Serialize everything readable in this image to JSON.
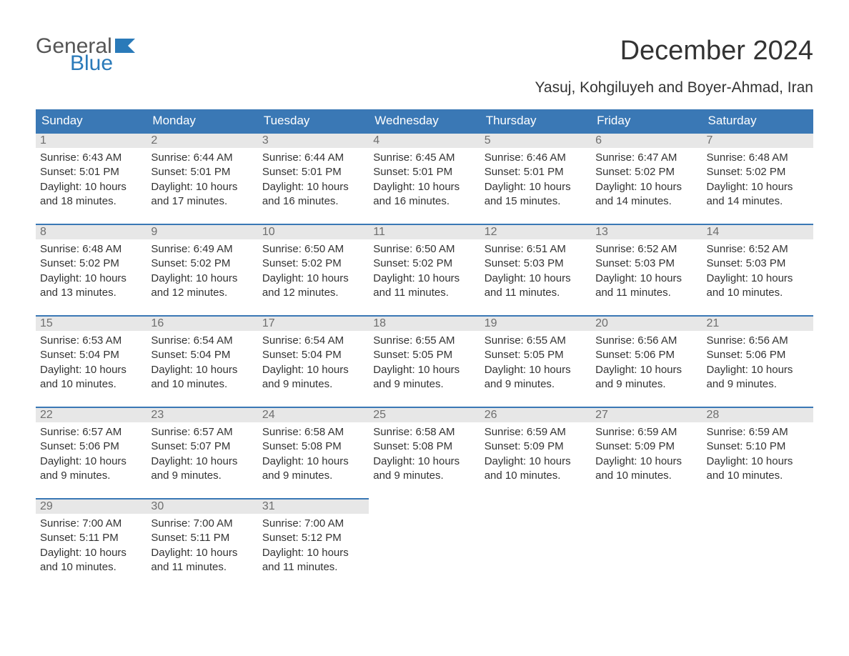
{
  "logo": {
    "line1": "General",
    "line2": "Blue",
    "flag_color": "#2a7ab9"
  },
  "title": "December 2024",
  "location": "Yasuj, Kohgiluyeh and Boyer-Ahmad, Iran",
  "day_headers": [
    "Sunday",
    "Monday",
    "Tuesday",
    "Wednesday",
    "Thursday",
    "Friday",
    "Saturday"
  ],
  "header_bg": "#3a78b5",
  "header_fg": "#ffffff",
  "daynum_bg": "#e7e7e7",
  "daynum_border": "#3a78b5",
  "daynum_fg": "#6e6e6e",
  "text_color": "#333333",
  "background_color": "#ffffff",
  "font_family": "Arial, Helvetica, sans-serif",
  "title_fontsize": 38,
  "location_fontsize": 21,
  "header_fontsize": 17,
  "daynum_fontsize": 16,
  "body_fontsize": 15,
  "weeks": [
    [
      {
        "n": "1",
        "sunrise": "Sunrise: 6:43 AM",
        "sunset": "Sunset: 5:01 PM",
        "day1": "Daylight: 10 hours",
        "day2": "and 18 minutes."
      },
      {
        "n": "2",
        "sunrise": "Sunrise: 6:44 AM",
        "sunset": "Sunset: 5:01 PM",
        "day1": "Daylight: 10 hours",
        "day2": "and 17 minutes."
      },
      {
        "n": "3",
        "sunrise": "Sunrise: 6:44 AM",
        "sunset": "Sunset: 5:01 PM",
        "day1": "Daylight: 10 hours",
        "day2": "and 16 minutes."
      },
      {
        "n": "4",
        "sunrise": "Sunrise: 6:45 AM",
        "sunset": "Sunset: 5:01 PM",
        "day1": "Daylight: 10 hours",
        "day2": "and 16 minutes."
      },
      {
        "n": "5",
        "sunrise": "Sunrise: 6:46 AM",
        "sunset": "Sunset: 5:01 PM",
        "day1": "Daylight: 10 hours",
        "day2": "and 15 minutes."
      },
      {
        "n": "6",
        "sunrise": "Sunrise: 6:47 AM",
        "sunset": "Sunset: 5:02 PM",
        "day1": "Daylight: 10 hours",
        "day2": "and 14 minutes."
      },
      {
        "n": "7",
        "sunrise": "Sunrise: 6:48 AM",
        "sunset": "Sunset: 5:02 PM",
        "day1": "Daylight: 10 hours",
        "day2": "and 14 minutes."
      }
    ],
    [
      {
        "n": "8",
        "sunrise": "Sunrise: 6:48 AM",
        "sunset": "Sunset: 5:02 PM",
        "day1": "Daylight: 10 hours",
        "day2": "and 13 minutes."
      },
      {
        "n": "9",
        "sunrise": "Sunrise: 6:49 AM",
        "sunset": "Sunset: 5:02 PM",
        "day1": "Daylight: 10 hours",
        "day2": "and 12 minutes."
      },
      {
        "n": "10",
        "sunrise": "Sunrise: 6:50 AM",
        "sunset": "Sunset: 5:02 PM",
        "day1": "Daylight: 10 hours",
        "day2": "and 12 minutes."
      },
      {
        "n": "11",
        "sunrise": "Sunrise: 6:50 AM",
        "sunset": "Sunset: 5:02 PM",
        "day1": "Daylight: 10 hours",
        "day2": "and 11 minutes."
      },
      {
        "n": "12",
        "sunrise": "Sunrise: 6:51 AM",
        "sunset": "Sunset: 5:03 PM",
        "day1": "Daylight: 10 hours",
        "day2": "and 11 minutes."
      },
      {
        "n": "13",
        "sunrise": "Sunrise: 6:52 AM",
        "sunset": "Sunset: 5:03 PM",
        "day1": "Daylight: 10 hours",
        "day2": "and 11 minutes."
      },
      {
        "n": "14",
        "sunrise": "Sunrise: 6:52 AM",
        "sunset": "Sunset: 5:03 PM",
        "day1": "Daylight: 10 hours",
        "day2": "and 10 minutes."
      }
    ],
    [
      {
        "n": "15",
        "sunrise": "Sunrise: 6:53 AM",
        "sunset": "Sunset: 5:04 PM",
        "day1": "Daylight: 10 hours",
        "day2": "and 10 minutes."
      },
      {
        "n": "16",
        "sunrise": "Sunrise: 6:54 AM",
        "sunset": "Sunset: 5:04 PM",
        "day1": "Daylight: 10 hours",
        "day2": "and 10 minutes."
      },
      {
        "n": "17",
        "sunrise": "Sunrise: 6:54 AM",
        "sunset": "Sunset: 5:04 PM",
        "day1": "Daylight: 10 hours",
        "day2": "and 9 minutes."
      },
      {
        "n": "18",
        "sunrise": "Sunrise: 6:55 AM",
        "sunset": "Sunset: 5:05 PM",
        "day1": "Daylight: 10 hours",
        "day2": "and 9 minutes."
      },
      {
        "n": "19",
        "sunrise": "Sunrise: 6:55 AM",
        "sunset": "Sunset: 5:05 PM",
        "day1": "Daylight: 10 hours",
        "day2": "and 9 minutes."
      },
      {
        "n": "20",
        "sunrise": "Sunrise: 6:56 AM",
        "sunset": "Sunset: 5:06 PM",
        "day1": "Daylight: 10 hours",
        "day2": "and 9 minutes."
      },
      {
        "n": "21",
        "sunrise": "Sunrise: 6:56 AM",
        "sunset": "Sunset: 5:06 PM",
        "day1": "Daylight: 10 hours",
        "day2": "and 9 minutes."
      }
    ],
    [
      {
        "n": "22",
        "sunrise": "Sunrise: 6:57 AM",
        "sunset": "Sunset: 5:06 PM",
        "day1": "Daylight: 10 hours",
        "day2": "and 9 minutes."
      },
      {
        "n": "23",
        "sunrise": "Sunrise: 6:57 AM",
        "sunset": "Sunset: 5:07 PM",
        "day1": "Daylight: 10 hours",
        "day2": "and 9 minutes."
      },
      {
        "n": "24",
        "sunrise": "Sunrise: 6:58 AM",
        "sunset": "Sunset: 5:08 PM",
        "day1": "Daylight: 10 hours",
        "day2": "and 9 minutes."
      },
      {
        "n": "25",
        "sunrise": "Sunrise: 6:58 AM",
        "sunset": "Sunset: 5:08 PM",
        "day1": "Daylight: 10 hours",
        "day2": "and 9 minutes."
      },
      {
        "n": "26",
        "sunrise": "Sunrise: 6:59 AM",
        "sunset": "Sunset: 5:09 PM",
        "day1": "Daylight: 10 hours",
        "day2": "and 10 minutes."
      },
      {
        "n": "27",
        "sunrise": "Sunrise: 6:59 AM",
        "sunset": "Sunset: 5:09 PM",
        "day1": "Daylight: 10 hours",
        "day2": "and 10 minutes."
      },
      {
        "n": "28",
        "sunrise": "Sunrise: 6:59 AM",
        "sunset": "Sunset: 5:10 PM",
        "day1": "Daylight: 10 hours",
        "day2": "and 10 minutes."
      }
    ],
    [
      {
        "n": "29",
        "sunrise": "Sunrise: 7:00 AM",
        "sunset": "Sunset: 5:11 PM",
        "day1": "Daylight: 10 hours",
        "day2": "and 10 minutes."
      },
      {
        "n": "30",
        "sunrise": "Sunrise: 7:00 AM",
        "sunset": "Sunset: 5:11 PM",
        "day1": "Daylight: 10 hours",
        "day2": "and 11 minutes."
      },
      {
        "n": "31",
        "sunrise": "Sunrise: 7:00 AM",
        "sunset": "Sunset: 5:12 PM",
        "day1": "Daylight: 10 hours",
        "day2": "and 11 minutes."
      },
      {
        "empty": true
      },
      {
        "empty": true
      },
      {
        "empty": true
      },
      {
        "empty": true
      }
    ]
  ]
}
